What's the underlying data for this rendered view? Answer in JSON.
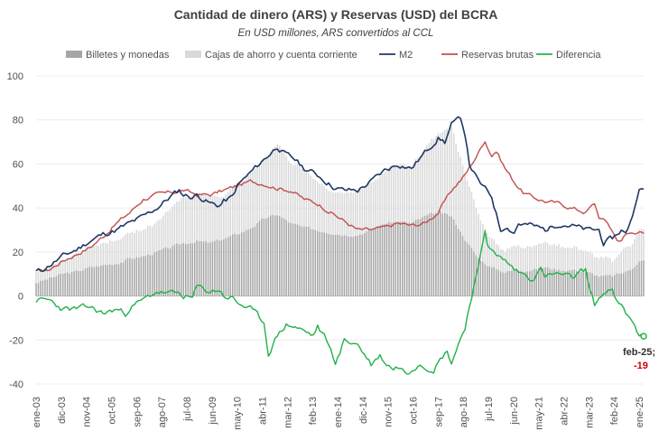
{
  "chart_data": {
    "type": "bar+line",
    "title": "Cantidad  de dinero (ARS) y Reservas (USD) del BCRA",
    "subtitle": "En USD millones, ARS convertidos al CCL",
    "ylim": [
      -40,
      100
    ],
    "yticks": [
      -40,
      -20,
      0,
      20,
      40,
      60,
      80,
      100
    ],
    "xtick_labels": [
      "ene-03",
      "dic-03",
      "nov-04",
      "oct-05",
      "sep-06",
      "ago-07",
      "jul-08",
      "jun-09",
      "may-10",
      "abr-11",
      "mar-12",
      "feb-13",
      "ene-14",
      "dic-14",
      "nov-15",
      "oct-16",
      "sep-17",
      "ago-18",
      "jul-19",
      "jun-20",
      "may-21",
      "abr-22",
      "mar-23",
      "feb-24",
      "ene-25"
    ],
    "colors": {
      "billetes": "#a6a6a6",
      "cajas": "#d9d9d9",
      "m2": "#1f3864",
      "reservas": "#c0504d",
      "diferencia": "#22b04b"
    },
    "legend": [
      {
        "name": "Billetes y monedas",
        "kind": "bar",
        "color": "#a6a6a6"
      },
      {
        "name": "Cajas de ahorro y cuenta corriente",
        "kind": "bar",
        "color": "#d9d9d9"
      },
      {
        "name": "M2",
        "kind": "line",
        "color": "#1f3864"
      },
      {
        "name": "Reservas brutas",
        "kind": "line",
        "color": "#c0504d"
      },
      {
        "name": "Diferencia",
        "kind": "line",
        "color": "#22b04b"
      }
    ],
    "annotation": {
      "date": "feb-25;",
      "value": "-19"
    },
    "series_keypoints": {
      "billetes": [
        [
          0,
          6
        ],
        [
          6,
          8
        ],
        [
          12,
          10
        ],
        [
          18,
          11
        ],
        [
          24,
          13
        ],
        [
          30,
          14
        ],
        [
          36,
          15
        ],
        [
          42,
          17
        ],
        [
          48,
          18
        ],
        [
          54,
          20
        ],
        [
          60,
          22
        ],
        [
          66,
          24
        ],
        [
          72,
          25
        ],
        [
          78,
          24
        ],
        [
          84,
          26
        ],
        [
          90,
          28
        ],
        [
          96,
          31
        ],
        [
          102,
          35
        ],
        [
          108,
          37
        ],
        [
          114,
          33
        ],
        [
          120,
          31
        ],
        [
          126,
          30
        ],
        [
          132,
          29
        ],
        [
          138,
          28
        ],
        [
          144,
          28
        ],
        [
          150,
          30
        ],
        [
          156,
          33
        ],
        [
          162,
          34
        ],
        [
          168,
          33
        ],
        [
          174,
          36
        ],
        [
          180,
          38
        ],
        [
          186,
          36
        ],
        [
          192,
          26
        ],
        [
          198,
          17
        ],
        [
          204,
          13
        ],
        [
          210,
          11
        ],
        [
          216,
          12
        ],
        [
          222,
          12
        ],
        [
          228,
          13
        ],
        [
          234,
          12
        ],
        [
          240,
          12
        ],
        [
          246,
          11
        ],
        [
          252,
          9
        ],
        [
          258,
          9
        ],
        [
          264,
          11
        ],
        [
          270,
          16
        ],
        [
          266,
          12
        ]
      ],
      "cajas": [
        [
          0,
          5
        ],
        [
          6,
          5
        ],
        [
          12,
          6
        ],
        [
          18,
          8
        ],
        [
          24,
          9
        ],
        [
          30,
          10
        ],
        [
          36,
          11
        ],
        [
          42,
          12
        ],
        [
          48,
          12
        ],
        [
          54,
          14
        ],
        [
          60,
          17
        ],
        [
          66,
          21
        ],
        [
          72,
          22
        ],
        [
          78,
          20
        ],
        [
          84,
          20
        ],
        [
          90,
          22
        ],
        [
          96,
          25
        ],
        [
          102,
          27
        ],
        [
          108,
          32
        ],
        [
          114,
          28
        ],
        [
          120,
          26
        ],
        [
          126,
          23
        ],
        [
          132,
          20
        ],
        [
          138,
          20
        ],
        [
          144,
          20
        ],
        [
          150,
          22
        ],
        [
          156,
          24
        ],
        [
          162,
          26
        ],
        [
          168,
          25
        ],
        [
          174,
          30
        ],
        [
          180,
          35
        ],
        [
          186,
          40
        ],
        [
          192,
          30
        ],
        [
          198,
          20
        ],
        [
          204,
          13
        ],
        [
          210,
          10
        ],
        [
          216,
          11
        ],
        [
          222,
          11
        ],
        [
          228,
          12
        ],
        [
          234,
          11
        ],
        [
          240,
          11
        ],
        [
          246,
          10
        ],
        [
          252,
          8
        ],
        [
          258,
          7
        ],
        [
          264,
          11
        ],
        [
          270,
          14
        ],
        [
          266,
          11
        ]
      ],
      "m2": [
        [
          0,
          11
        ],
        [
          3,
          12
        ],
        [
          6,
          14
        ],
        [
          12,
          18
        ],
        [
          18,
          21
        ],
        [
          24,
          25
        ],
        [
          30,
          28
        ],
        [
          36,
          30
        ],
        [
          42,
          33
        ],
        [
          48,
          36
        ],
        [
          54,
          40
        ],
        [
          60,
          45
        ],
        [
          64,
          48
        ],
        [
          66,
          46
        ],
        [
          70,
          45
        ],
        [
          72,
          46
        ],
        [
          78,
          42
        ],
        [
          82,
          41
        ],
        [
          84,
          43
        ],
        [
          88,
          45
        ],
        [
          90,
          50
        ],
        [
          96,
          56
        ],
        [
          102,
          62
        ],
        [
          108,
          68
        ],
        [
          112,
          64
        ],
        [
          116,
          62
        ],
        [
          120,
          58
        ],
        [
          126,
          55
        ],
        [
          130,
          52
        ],
        [
          134,
          49
        ],
        [
          138,
          48
        ],
        [
          144,
          48
        ],
        [
          150,
          52
        ],
        [
          156,
          57
        ],
        [
          162,
          60
        ],
        [
          168,
          58
        ],
        [
          174,
          65
        ],
        [
          180,
          72
        ],
        [
          183,
          70
        ],
        [
          186,
          78
        ],
        [
          188,
          79
        ],
        [
          190,
          81
        ],
        [
          192,
          74
        ],
        [
          194,
          60
        ],
        [
          198,
          52
        ],
        [
          204,
          45
        ],
        [
          208,
          30
        ],
        [
          210,
          32
        ],
        [
          214,
          29
        ],
        [
          216,
          33
        ],
        [
          222,
          32
        ],
        [
          228,
          30
        ],
        [
          234,
          33
        ],
        [
          240,
          32
        ],
        [
          246,
          30
        ],
        [
          252,
          30
        ],
        [
          254,
          24
        ],
        [
          258,
          26
        ],
        [
          262,
          30
        ],
        [
          264,
          28
        ],
        [
          268,
          40
        ],
        [
          270,
          50
        ],
        [
          272,
          48
        ]
      ],
      "reservas": [
        [
          0,
          11
        ],
        [
          6,
          12
        ],
        [
          12,
          16
        ],
        [
          18,
          19
        ],
        [
          24,
          22
        ],
        [
          30,
          27
        ],
        [
          36,
          33
        ],
        [
          42,
          38
        ],
        [
          48,
          44
        ],
        [
          54,
          46
        ],
        [
          60,
          47
        ],
        [
          66,
          48
        ],
        [
          72,
          46
        ],
        [
          78,
          46
        ],
        [
          84,
          48
        ],
        [
          90,
          50
        ],
        [
          96,
          52
        ],
        [
          102,
          51
        ],
        [
          108,
          49
        ],
        [
          114,
          48
        ],
        [
          120,
          44
        ],
        [
          126,
          42
        ],
        [
          132,
          38
        ],
        [
          138,
          34
        ],
        [
          144,
          30
        ],
        [
          150,
          30
        ],
        [
          156,
          31
        ],
        [
          162,
          33
        ],
        [
          168,
          32
        ],
        [
          174,
          33
        ],
        [
          180,
          38
        ],
        [
          186,
          48
        ],
        [
          192,
          55
        ],
        [
          198,
          65
        ],
        [
          201,
          71
        ],
        [
          202,
          68
        ],
        [
          204,
          64
        ],
        [
          206,
          66
        ],
        [
          210,
          58
        ],
        [
          214,
          52
        ],
        [
          218,
          47
        ],
        [
          222,
          45
        ],
        [
          228,
          43
        ],
        [
          234,
          42
        ],
        [
          240,
          40
        ],
        [
          246,
          38
        ],
        [
          250,
          42
        ],
        [
          252,
          36
        ],
        [
          256,
          33
        ],
        [
          260,
          26
        ],
        [
          262,
          25
        ],
        [
          264,
          28
        ],
        [
          268,
          29
        ],
        [
          270,
          30
        ],
        [
          272,
          28
        ]
      ],
      "diferencia": [
        [
          0,
          -2
        ],
        [
          6,
          -2
        ],
        [
          9,
          -4
        ],
        [
          12,
          -6
        ],
        [
          18,
          -6
        ],
        [
          24,
          -5
        ],
        [
          30,
          -8
        ],
        [
          36,
          -6
        ],
        [
          40,
          -8
        ],
        [
          42,
          -5
        ],
        [
          48,
          -2
        ],
        [
          54,
          2
        ],
        [
          60,
          1
        ],
        [
          64,
          1
        ],
        [
          66,
          0
        ],
        [
          70,
          -1
        ],
        [
          72,
          4
        ],
        [
          78,
          2
        ],
        [
          82,
          3
        ],
        [
          84,
          0
        ],
        [
          88,
          -1
        ],
        [
          90,
          -3
        ],
        [
          96,
          -6
        ],
        [
          102,
          -12
        ],
        [
          104,
          -26
        ],
        [
          108,
          -18
        ],
        [
          112,
          -13
        ],
        [
          116,
          -14
        ],
        [
          120,
          -16
        ],
        [
          124,
          -18
        ],
        [
          126,
          -14
        ],
        [
          130,
          -20
        ],
        [
          134,
          -30
        ],
        [
          136,
          -26
        ],
        [
          138,
          -20
        ],
        [
          144,
          -22
        ],
        [
          150,
          -31
        ],
        [
          154,
          -27
        ],
        [
          156,
          -30
        ],
        [
          160,
          -33
        ],
        [
          162,
          -32
        ],
        [
          166,
          -35
        ],
        [
          168,
          -33
        ],
        [
          172,
          -30
        ],
        [
          174,
          -32
        ],
        [
          178,
          -33
        ],
        [
          180,
          -30
        ],
        [
          184,
          -25
        ],
        [
          186,
          -30
        ],
        [
          192,
          -14
        ],
        [
          196,
          5
        ],
        [
          198,
          12
        ],
        [
          201,
          30
        ],
        [
          202,
          24
        ],
        [
          204,
          22
        ],
        [
          206,
          18
        ],
        [
          210,
          16
        ],
        [
          214,
          12
        ],
        [
          218,
          10
        ],
        [
          222,
          8
        ],
        [
          226,
          12
        ],
        [
          228,
          9
        ],
        [
          234,
          10
        ],
        [
          240,
          8
        ],
        [
          244,
          11
        ],
        [
          246,
          12
        ],
        [
          248,
          2
        ],
        [
          250,
          -4
        ],
        [
          252,
          -1
        ],
        [
          256,
          3
        ],
        [
          258,
          2
        ],
        [
          260,
          -3
        ],
        [
          262,
          -5
        ],
        [
          264,
          -8
        ],
        [
          266,
          -11
        ],
        [
          268,
          -13
        ],
        [
          270,
          -18
        ],
        [
          272,
          -19
        ]
      ]
    }
  }
}
